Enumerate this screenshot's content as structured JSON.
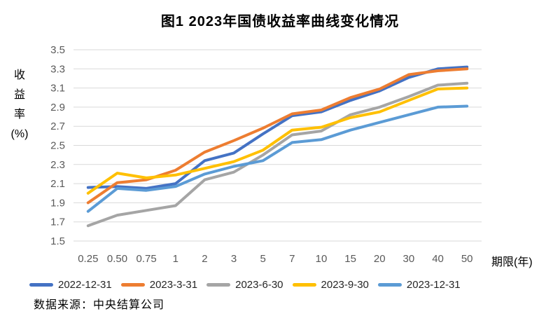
{
  "title": "图1 2023年国债收益率曲线变化情况",
  "source_note": "数据来源：中央结算公司",
  "colors": {
    "grid": "#D9D9D9",
    "tick_label": "#595959",
    "text": "#000000",
    "background": "#FFFFFF"
  },
  "chart_data": {
    "type": "line",
    "title": "图1 2023年国债收益率曲线变化情况",
    "x_axis_title": "期限(年)",
    "y_axis_title": "收益率(%)",
    "y_axis_title_lines": [
      "收",
      "益",
      "率",
      "(%)"
    ],
    "categories": [
      "0.25",
      "0.50",
      "0.75",
      "1",
      "2",
      "3",
      "5",
      "7",
      "10",
      "15",
      "20",
      "30",
      "40",
      "50"
    ],
    "ylim": [
      1.5,
      3.5
    ],
    "y_tick_step": 0.2,
    "grid": "horizontal",
    "legend_position": "bottom",
    "series": [
      {
        "name": "2022-12-31",
        "color": "#4472C4",
        "values": [
          2.06,
          2.07,
          2.05,
          2.1,
          2.34,
          2.42,
          2.62,
          2.81,
          2.85,
          2.97,
          3.07,
          3.21,
          3.3,
          3.32
        ]
      },
      {
        "name": "2023-3-31",
        "color": "#ED7D31",
        "values": [
          1.9,
          2.11,
          2.14,
          2.24,
          2.43,
          2.55,
          2.68,
          2.83,
          2.87,
          3.0,
          3.09,
          3.24,
          3.28,
          3.3
        ]
      },
      {
        "name": "2023-6-30",
        "color": "#A5A5A5",
        "values": [
          1.66,
          1.77,
          1.82,
          1.87,
          2.14,
          2.22,
          2.4,
          2.61,
          2.65,
          2.82,
          2.9,
          3.01,
          3.13,
          3.15
        ]
      },
      {
        "name": "2023-9-30",
        "color": "#FFC000",
        "values": [
          2.0,
          2.21,
          2.16,
          2.19,
          2.26,
          2.33,
          2.45,
          2.66,
          2.69,
          2.79,
          2.85,
          2.97,
          3.09,
          3.1
        ]
      },
      {
        "name": "2023-12-31",
        "color": "#5B9BD5",
        "values": [
          1.81,
          2.05,
          2.03,
          2.07,
          2.2,
          2.28,
          2.34,
          2.53,
          2.56,
          2.66,
          2.74,
          2.82,
          2.9,
          2.91
        ]
      }
    ]
  }
}
